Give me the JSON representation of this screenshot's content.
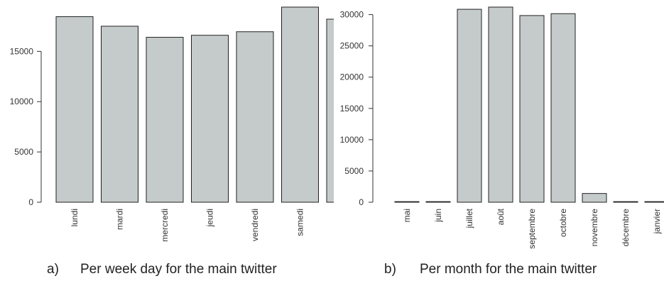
{
  "colors": {
    "bar": "#c5cbca",
    "bar_border": "#222222",
    "axis": "#333333"
  },
  "chart_data": [
    {
      "type": "bar",
      "caption_letter": "a)",
      "caption_text": "Per week day for the main twitter",
      "categories": [
        "lundi",
        "mardi",
        "mercredi",
        "jeudi",
        "vendredi",
        "samedi",
        ""
      ],
      "values": [
        18450,
        17500,
        16400,
        16600,
        16950,
        19400,
        18200
      ],
      "ylim": [
        0,
        19400
      ],
      "yticks": [
        0,
        5000,
        10000,
        15000
      ],
      "ytick_labels": [
        "0",
        "5000",
        "10000",
        "15000"
      ],
      "grid": false,
      "legend": "none"
    },
    {
      "type": "bar",
      "caption_letter": "b)",
      "caption_text": "Per month for the main twitter",
      "categories": [
        "mai",
        "juin",
        "juillet",
        "août",
        "septembre",
        "octobre",
        "novembre",
        "décembre",
        "janvier"
      ],
      "values": [
        100,
        100,
        30850,
        31200,
        29850,
        30150,
        1400,
        100,
        100
      ],
      "ylim": [
        0,
        31200
      ],
      "yticks": [
        0,
        5000,
        10000,
        15000,
        20000,
        25000,
        30000
      ],
      "ytick_labels": [
        "0",
        "5000",
        "10000",
        "15000",
        "20000",
        "25000",
        "30000"
      ],
      "grid": false,
      "legend": "none"
    }
  ]
}
